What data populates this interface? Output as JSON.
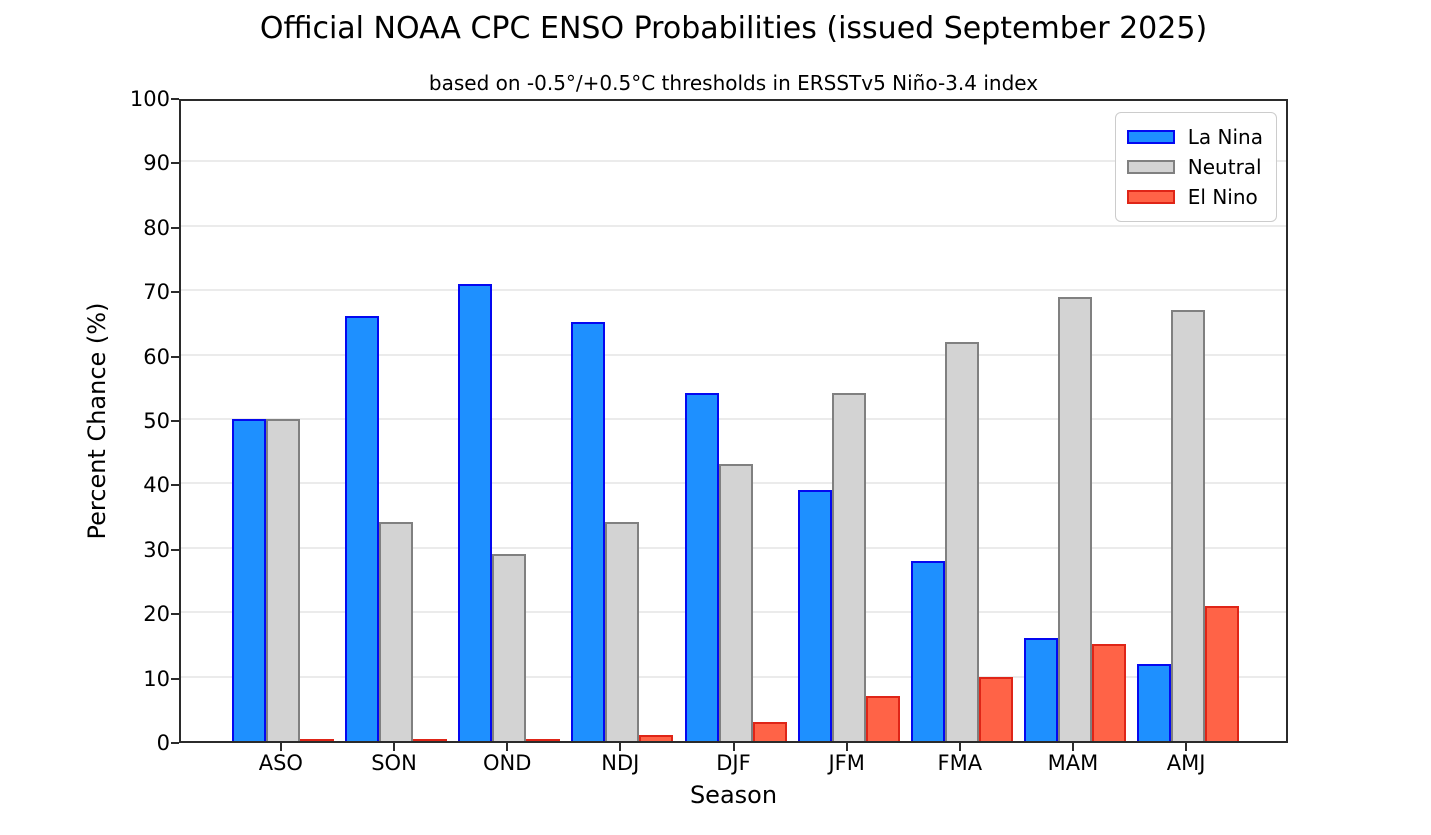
{
  "chart_data": {
    "type": "bar",
    "title": "Official NOAA CPC ENSO Probabilities (issued September 2025)",
    "subtitle": "based on -0.5°/+0.5°C thresholds in ERSSTv5 Niño-3.4 index",
    "xlabel": "Season",
    "ylabel": "Percent Chance (%)",
    "ylim": [
      0,
      100
    ],
    "yticks": [
      0,
      10,
      20,
      30,
      40,
      50,
      60,
      70,
      80,
      90,
      100
    ],
    "grid": true,
    "legend_position": "upper right",
    "categories": [
      "ASO",
      "SON",
      "OND",
      "NDJ",
      "DJF",
      "JFM",
      "FMA",
      "MAM",
      "AMJ"
    ],
    "series": [
      {
        "name": "La Nina",
        "fill": "#1e90ff",
        "edge": "#0408f0",
        "values": [
          50,
          66,
          71,
          65,
          54,
          39,
          28,
          16,
          12
        ]
      },
      {
        "name": "Neutral",
        "fill": "#d3d3d3",
        "edge": "#808080",
        "values": [
          50,
          34,
          29,
          34,
          43,
          54,
          62,
          69,
          67
        ]
      },
      {
        "name": "El Nino",
        "fill": "#ff6347",
        "edge": "#df2517",
        "values": [
          0,
          0,
          0,
          1,
          3,
          7,
          10,
          15,
          21
        ]
      }
    ],
    "colors": {
      "spine": "#2b2b2b",
      "gridline": "#ebebeb",
      "background": "#ffffff",
      "text": "#000000"
    }
  }
}
